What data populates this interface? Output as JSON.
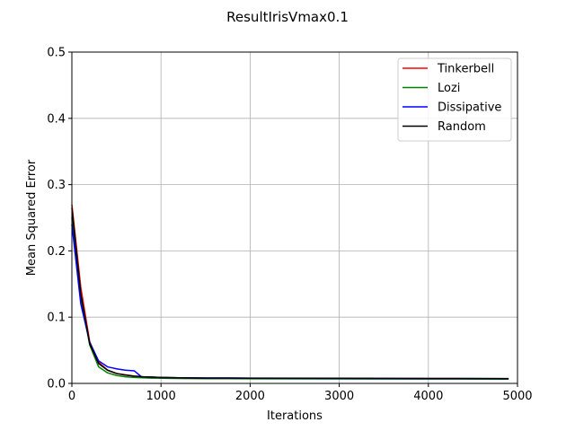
{
  "chart_data": {
    "type": "line",
    "title": "ResultIrisVmax0.1",
    "xlabel": "Iterations",
    "ylabel": "Mean Squared Error",
    "xlim": [
      0,
      5000
    ],
    "ylim": [
      0,
      0.5
    ],
    "xticks": [
      "0",
      "1000",
      "2000",
      "3000",
      "4000",
      "5000"
    ],
    "yticks": [
      "0.0",
      "0.1",
      "0.2",
      "0.3",
      "0.4",
      "0.5"
    ],
    "grid": true,
    "legend_position": "top-right",
    "series": [
      {
        "name": "Tinkerbell",
        "color": "#ff0000",
        "x": [
          0,
          100,
          200,
          300,
          400,
          500,
          600,
          700,
          800,
          900,
          1000,
          1200,
          1500,
          2000,
          3000,
          4000,
          4900
        ],
        "y": [
          0.27,
          0.145,
          0.063,
          0.032,
          0.02,
          0.015,
          0.013,
          0.011,
          0.01,
          0.0095,
          0.009,
          0.0085,
          0.008,
          0.0078,
          0.0075,
          0.0073,
          0.0072
        ]
      },
      {
        "name": "Lozi",
        "color": "#008000",
        "x": [
          0,
          100,
          200,
          300,
          400,
          500,
          600,
          700,
          800,
          900,
          1000,
          1200,
          1500,
          2000,
          3000,
          4000,
          4900
        ],
        "y": [
          0.25,
          0.13,
          0.058,
          0.025,
          0.016,
          0.012,
          0.01,
          0.009,
          0.0085,
          0.008,
          0.0078,
          0.0075,
          0.0072,
          0.007,
          0.0068,
          0.0066,
          0.0065
        ]
      },
      {
        "name": "Dissipative",
        "color": "#0000ff",
        "x": [
          0,
          100,
          200,
          300,
          400,
          500,
          600,
          700,
          780,
          900,
          1000,
          1200,
          1500,
          2000,
          3000,
          4000,
          4900
        ],
        "y": [
          0.24,
          0.12,
          0.062,
          0.034,
          0.025,
          0.022,
          0.02,
          0.019,
          0.01,
          0.0095,
          0.009,
          0.0085,
          0.008,
          0.0078,
          0.0075,
          0.0073,
          0.0072
        ]
      },
      {
        "name": "Random",
        "color": "#000000",
        "x": [
          0,
          100,
          200,
          300,
          400,
          500,
          600,
          700,
          800,
          900,
          1000,
          1200,
          1500,
          2000,
          3000,
          4000,
          4900
        ],
        "y": [
          0.265,
          0.135,
          0.06,
          0.03,
          0.02,
          0.015,
          0.0125,
          0.011,
          0.01,
          0.0095,
          0.009,
          0.0085,
          0.0082,
          0.008,
          0.0078,
          0.0075,
          0.0073
        ]
      }
    ]
  }
}
